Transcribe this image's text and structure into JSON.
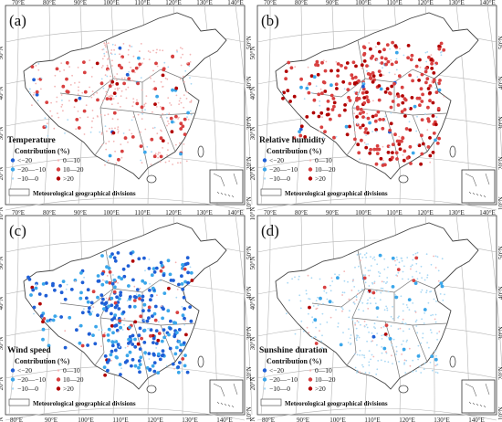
{
  "axes": {
    "top_ticks": [
      "70°E",
      "80°E",
      "90°E",
      "100°E",
      "110°E",
      "120°E",
      "130°E",
      "140°E"
    ],
    "bottom_ticks": [
      "80°E",
      "90°E",
      "100°E",
      "110°E",
      "120°E",
      "130°E",
      "140°E"
    ],
    "left_ticks": [
      "50°N",
      "40°N",
      "30°N",
      "20°N",
      "10°N"
    ],
    "right_ticks": [
      "50°N",
      "40°N",
      "30°N",
      "20°N",
      "10°N"
    ]
  },
  "legend": {
    "title": "Contribution (%)",
    "items": [
      "<−20",
      "−20—−10",
      "−10—0",
      "0—10",
      "10—20",
      ">20"
    ],
    "divisions_label": "Meteorological geographical divisions"
  },
  "colors": {
    "lt_m20": "#1f5fd6",
    "m20_m10": "#3aa6ea",
    "m10_0": "#a9d8f4",
    "p0_10": "#f2b4b4",
    "p10_20": "#d84040",
    "gt_20": "#b00000",
    "grid": "#b4b4b4",
    "border": "#555555"
  },
  "panels": [
    {
      "label": "(a)",
      "variable": "Temperature",
      "dominant_class": "0—10",
      "mix": [
        2,
        3,
        10,
        70,
        12,
        3
      ]
    },
    {
      "label": "(b)",
      "variable": "Relative humidity",
      "dominant_class": "10—20",
      "mix": [
        1,
        3,
        12,
        14,
        45,
        25
      ]
    },
    {
      "label": "(c)",
      "variable": "Wind speed",
      "dominant_class": "<−20",
      "mix": [
        46,
        30,
        8,
        6,
        6,
        4
      ]
    },
    {
      "label": "(d)",
      "variable": "Sunshine duration",
      "dominant_class": "−10—0",
      "mix": [
        1,
        4,
        78,
        14,
        2,
        1
      ]
    }
  ]
}
